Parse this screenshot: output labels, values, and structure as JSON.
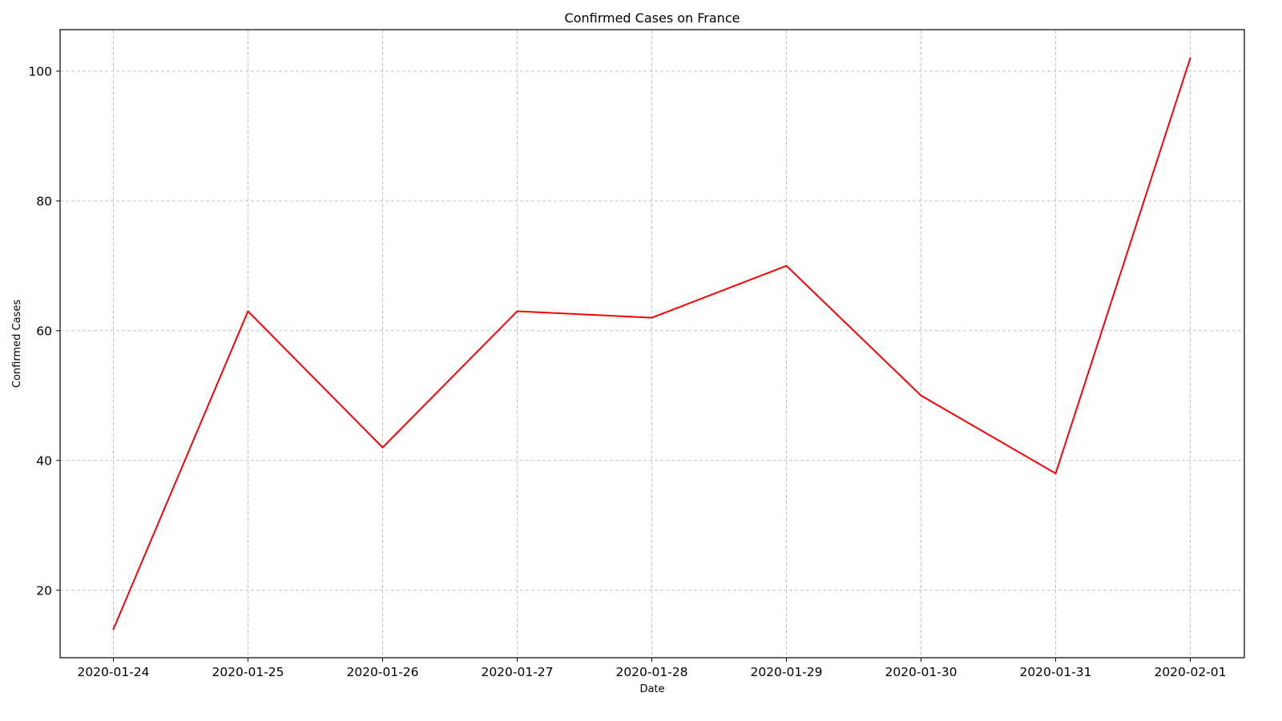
{
  "chart_data": {
    "type": "line",
    "title": "Confirmed Cases on France",
    "xlabel": "Date",
    "ylabel": "Confirmed Cases",
    "x": [
      "2020-01-24",
      "2020-01-25",
      "2020-01-26",
      "2020-01-27",
      "2020-01-28",
      "2020-01-29",
      "2020-01-30",
      "2020-01-31",
      "2020-02-01"
    ],
    "series": [
      {
        "values": [
          14,
          63,
          42,
          63,
          62,
          70,
          50,
          38,
          102
        ],
        "color": "#ff0000"
      }
    ],
    "yticks": [
      20,
      40,
      60,
      80,
      100
    ],
    "ylim": [
      9.6,
      106.4
    ],
    "grid": true,
    "grid_color": "#c4c4c4"
  }
}
